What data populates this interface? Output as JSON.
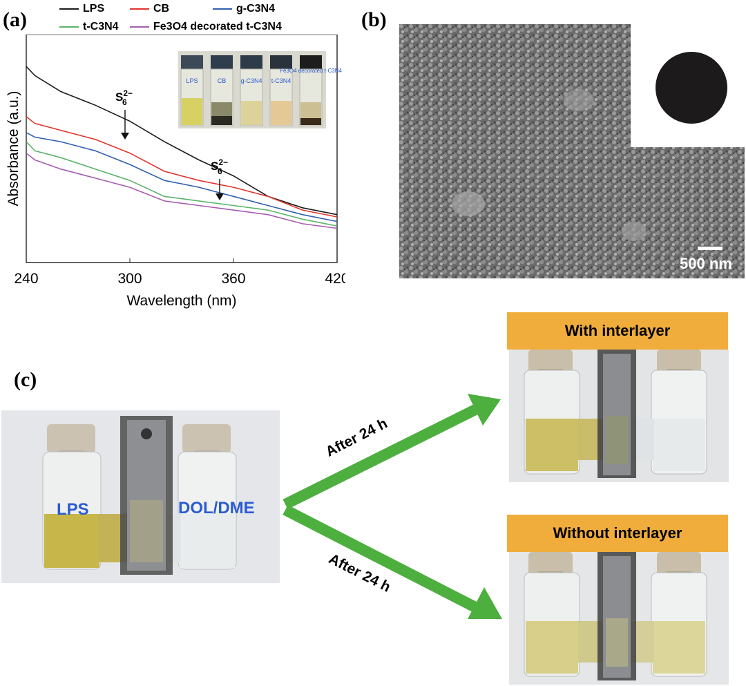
{
  "panels": {
    "a": "(a)",
    "b": "(b)",
    "c": "(c)"
  },
  "legend": [
    {
      "name": "LPS",
      "color": "#1a1a1a"
    },
    {
      "name": "CB",
      "color": "#e0342c"
    },
    {
      "name": "g-C3N4",
      "color": "#2f5fb0"
    },
    {
      "name": "t-C3N4",
      "color": "#5bb36a"
    },
    {
      "name": "Fe3O4 decorated t-C3N4",
      "color": "#a45cb0"
    }
  ],
  "chart_data": {
    "type": "line",
    "xlabel": "Wavelength (nm)",
    "ylabel": "Absorbance (a.u.)",
    "xlim": [
      240,
      420
    ],
    "x_ticks": [
      240,
      300,
      360,
      420
    ],
    "annotations": [
      {
        "text": "S6 2−",
        "x": 297
      },
      {
        "text": "S6 2−",
        "x": 352
      }
    ],
    "series": [
      {
        "name": "LPS",
        "x": [
          240,
          245,
          260,
          280,
          300,
          320,
          340,
          360,
          380,
          400,
          420
        ],
        "y": [
          0.86,
          0.82,
          0.75,
          0.69,
          0.62,
          0.53,
          0.45,
          0.38,
          0.29,
          0.24,
          0.21
        ]
      },
      {
        "name": "CB",
        "x": [
          240,
          245,
          260,
          280,
          300,
          320,
          340,
          360,
          380,
          400,
          420
        ],
        "y": [
          0.64,
          0.61,
          0.58,
          0.54,
          0.48,
          0.4,
          0.36,
          0.33,
          0.29,
          0.23,
          0.2
        ]
      },
      {
        "name": "g-C3N4",
        "x": [
          240,
          245,
          260,
          280,
          300,
          320,
          340,
          360,
          380,
          400,
          420
        ],
        "y": [
          0.57,
          0.55,
          0.53,
          0.49,
          0.43,
          0.36,
          0.33,
          0.29,
          0.25,
          0.21,
          0.18
        ]
      },
      {
        "name": "t-C3N4",
        "x": [
          240,
          245,
          260,
          280,
          300,
          320,
          340,
          360,
          380,
          400,
          420
        ],
        "y": [
          0.53,
          0.49,
          0.46,
          0.41,
          0.36,
          0.29,
          0.27,
          0.25,
          0.23,
          0.19,
          0.16
        ]
      },
      {
        "name": "Fe3O4 decorated t-C3N4",
        "x": [
          240,
          245,
          260,
          280,
          300,
          320,
          340,
          360,
          380,
          400,
          420
        ],
        "y": [
          0.48,
          0.45,
          0.41,
          0.37,
          0.33,
          0.27,
          0.25,
          0.23,
          0.21,
          0.17,
          0.15
        ]
      }
    ]
  },
  "inset_vials": [
    "LPS",
    "CB",
    "g-C3N4",
    "t-C3N4",
    "Fe3O4 decorated t-C3N4"
  ],
  "sem": {
    "scale_bar": "500 nm"
  },
  "experiment": {
    "left_label": "LPS",
    "right_label": "DOL/DME",
    "arrow_top": "After 24 h",
    "arrow_bottom": "After 24 h",
    "with_label": "With interlayer",
    "without_label": "Without interlayer"
  },
  "colors": {
    "accent_orange": "#f0ad3c",
    "arrow_green": "#4caf3e",
    "label_blue": "#2a5bd0"
  }
}
